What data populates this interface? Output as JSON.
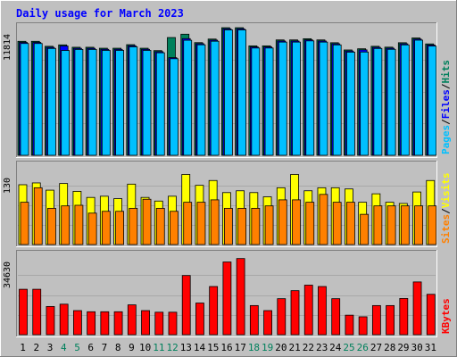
{
  "chart_data": {
    "type": "bar",
    "title": "Daily usage for March 2023",
    "categories": [
      "1",
      "2",
      "3",
      "4",
      "5",
      "6",
      "7",
      "8",
      "9",
      "10",
      "11",
      "12",
      "13",
      "14",
      "15",
      "16",
      "17",
      "18",
      "19",
      "20",
      "21",
      "22",
      "23",
      "24",
      "25",
      "26",
      "27",
      "28",
      "29",
      "30",
      "31"
    ],
    "weekend_days": [
      "4",
      "5",
      "11",
      "12",
      "18",
      "19",
      "25",
      "26"
    ],
    "colors": {
      "background": "#c0c0c0",
      "title": "#0000ff",
      "hits": "#00805c",
      "files": "#0000ff",
      "pages": "#00c0ff",
      "visits": "#ffff00",
      "sites": "#ff8000",
      "kbytes": "#ff0000",
      "weekend_label": "#00805c",
      "weekday_label": "#000000"
    },
    "panels": [
      {
        "id": "hits-files-pages",
        "ymax": 11814,
        "ymax_label": "11814",
        "axis_parts": [
          "Pages",
          "/",
          "Files",
          "/",
          "Hits"
        ],
        "series": [
          {
            "name": "Hits",
            "values": [
              10550,
              10550,
              10090,
              10220,
              10000,
              10000,
              9910,
              9910,
              10240,
              9910,
              9690,
              10900,
              11210,
              10430,
              10760,
              11810,
              11810,
              10130,
              10130,
              10680,
              10680,
              10790,
              10680,
              10420,
              9750,
              9860,
              10090,
              10010,
              10420,
              10860,
              10310
            ]
          },
          {
            "name": "Files",
            "values": [
              10450,
              10450,
              9990,
              10120,
              9900,
              9900,
              9810,
              9810,
              10140,
              9810,
              9590,
              9040,
              10800,
              10330,
              10660,
              11710,
              11710,
              10030,
              10030,
              10580,
              10580,
              10690,
              10580,
              10320,
              9650,
              9760,
              9990,
              9910,
              10320,
              10760,
              10210
            ]
          },
          {
            "name": "Pages",
            "values": [
              10350,
              10350,
              9890,
              9700,
              9800,
              9800,
              9710,
              9710,
              10040,
              9710,
              9490,
              8940,
              10650,
              10230,
              10560,
              11610,
              11610,
              9930,
              9930,
              10480,
              10480,
              10590,
              10480,
              10220,
              9550,
              9560,
              9890,
              9810,
              10220,
              10660,
              10110
            ]
          }
        ]
      },
      {
        "id": "visits-sites",
        "ymax": 130,
        "ymax_label": "130",
        "axis_parts": [
          "Sites",
          "/",
          "Visits"
        ],
        "series": [
          {
            "name": "Visits",
            "values": [
              99,
              102,
              90,
              101,
              88,
              78,
              80,
              76,
              100,
              78,
              72,
              80,
              116,
              98,
              106,
              86,
              89,
              86,
              79,
              94,
              116,
              89,
              94,
              94,
              92,
              70,
              84,
              70,
              68,
              87,
              106
            ]
          },
          {
            "name": "Sites",
            "values": [
              70,
              94,
              60,
              64,
              65,
              52,
              55,
              55,
              60,
              75,
              60,
              55,
              70,
              70,
              74,
              60,
              60,
              60,
              64,
              74,
              74,
              70,
              83,
              70,
              70,
              50,
              64,
              64,
              64,
              64,
              64
            ]
          }
        ]
      },
      {
        "id": "kbytes",
        "ymax": 34630,
        "ymax_label": "34630",
        "axis_parts": [
          "KBytes"
        ],
        "series": [
          {
            "name": "KBytes",
            "values": [
              19800,
              19800,
              12300,
              13300,
              10500,
              10000,
              10000,
              10000,
              13000,
              10500,
              9800,
              9800,
              25800,
              13800,
              21000,
              31700,
              33200,
              12700,
              10500,
              15700,
              19200,
              21600,
              21000,
              15700,
              8500,
              7800,
              12700,
              12700,
              15800,
              23000,
              17600
            ]
          }
        ]
      }
    ]
  }
}
